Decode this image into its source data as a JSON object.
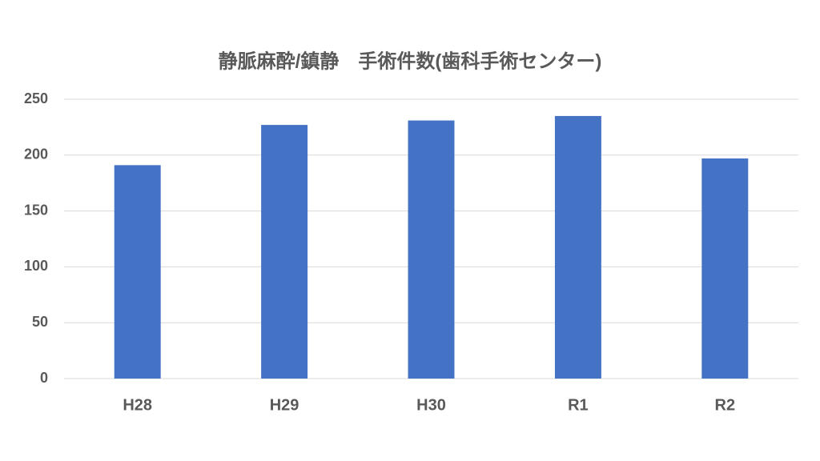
{
  "chart_data": {
    "type": "bar",
    "title": "静脈麻酔/鎮静　手術件数(歯科手術センター)",
    "categories": [
      "H28",
      "H29",
      "H30",
      "R1",
      "R2"
    ],
    "values": [
      191,
      227,
      231,
      235,
      197
    ],
    "color": "#4472c4",
    "ylim": [
      0,
      250
    ],
    "yticks": [
      0,
      50,
      100,
      150,
      200,
      250
    ],
    "grid": true
  }
}
